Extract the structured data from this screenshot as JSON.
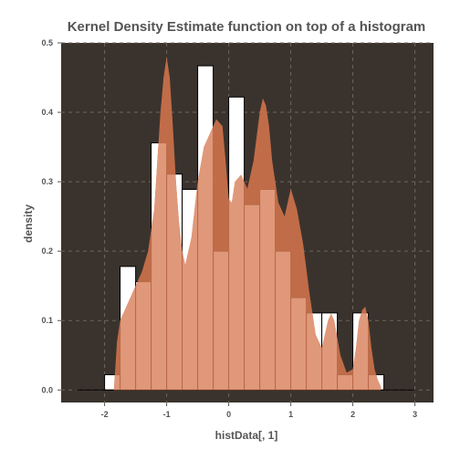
{
  "chart_data": {
    "type": "histogram_with_kde",
    "title": "Kernel Density Estimate function on top of a histogram",
    "xlabel": "histData[, 1]",
    "ylabel": "density",
    "xlim": [
      -2.7,
      3.3
    ],
    "ylim": [
      -0.018,
      0.5
    ],
    "x_ticks": [
      "-2",
      "-1",
      "0",
      "1",
      "2",
      "3"
    ],
    "x_tick_values": [
      -2,
      -1,
      0,
      1,
      2,
      3
    ],
    "y_ticks": [
      "0.0",
      "0.1",
      "0.2",
      "0.3",
      "0.4",
      "0.5"
    ],
    "y_tick_values": [
      0.0,
      0.1,
      0.2,
      0.3,
      0.4,
      0.5
    ],
    "grid": true,
    "histogram": {
      "bin_width": 0.25,
      "bins": [
        {
          "x0": -2.0,
          "x1": -1.75,
          "density": 0.022
        },
        {
          "x0": -1.75,
          "x1": -1.5,
          "density": 0.178
        },
        {
          "x0": -1.5,
          "x1": -1.25,
          "density": 0.156
        },
        {
          "x0": -1.25,
          "x1": -1.0,
          "density": 0.356
        },
        {
          "x0": -1.0,
          "x1": -0.75,
          "density": 0.311
        },
        {
          "x0": -0.75,
          "x1": -0.5,
          "density": 0.289
        },
        {
          "x0": -0.5,
          "x1": -0.25,
          "density": 0.467
        },
        {
          "x0": -0.25,
          "x1": 0.0,
          "density": 0.2
        },
        {
          "x0": 0.0,
          "x1": 0.25,
          "density": 0.422
        },
        {
          "x0": 0.25,
          "x1": 0.5,
          "density": 0.267
        },
        {
          "x0": 0.5,
          "x1": 0.75,
          "density": 0.289
        },
        {
          "x0": 0.75,
          "x1": 1.0,
          "density": 0.2
        },
        {
          "x0": 1.0,
          "x1": 1.25,
          "density": 0.133
        },
        {
          "x0": 1.25,
          "x1": 1.5,
          "density": 0.111
        },
        {
          "x0": 1.5,
          "x1": 1.75,
          "density": 0.111
        },
        {
          "x0": 1.75,
          "x1": 2.0,
          "density": 0.022
        },
        {
          "x0": 2.0,
          "x1": 2.25,
          "density": 0.111
        },
        {
          "x0": 2.25,
          "x1": 2.5,
          "density": 0.022
        }
      ]
    },
    "kde": {
      "x": [
        -1.85,
        -1.8,
        -1.75,
        -1.7,
        -1.6,
        -1.5,
        -1.4,
        -1.3,
        -1.2,
        -1.15,
        -1.1,
        -1.05,
        -1.0,
        -0.95,
        -0.9,
        -0.85,
        -0.8,
        -0.75,
        -0.7,
        -0.6,
        -0.5,
        -0.4,
        -0.3,
        -0.2,
        -0.1,
        -0.05,
        0.0,
        0.05,
        0.1,
        0.2,
        0.3,
        0.4,
        0.5,
        0.55,
        0.6,
        0.65,
        0.7,
        0.8,
        0.9,
        1.0,
        1.1,
        1.2,
        1.3,
        1.4,
        1.5,
        1.6,
        1.65,
        1.7,
        1.8,
        1.9,
        2.0,
        2.05,
        2.1,
        2.15,
        2.2,
        2.25,
        2.3,
        2.35,
        2.4,
        2.45
      ],
      "y": [
        0.0,
        0.07,
        0.1,
        0.11,
        0.13,
        0.15,
        0.17,
        0.2,
        0.26,
        0.33,
        0.4,
        0.45,
        0.48,
        0.45,
        0.38,
        0.3,
        0.24,
        0.2,
        0.18,
        0.22,
        0.3,
        0.35,
        0.37,
        0.39,
        0.38,
        0.33,
        0.275,
        0.27,
        0.3,
        0.31,
        0.29,
        0.33,
        0.4,
        0.42,
        0.41,
        0.38,
        0.33,
        0.27,
        0.25,
        0.29,
        0.26,
        0.21,
        0.14,
        0.08,
        0.06,
        0.1,
        0.11,
        0.1,
        0.05,
        0.025,
        0.03,
        0.06,
        0.1,
        0.115,
        0.12,
        0.1,
        0.06,
        0.03,
        0.015,
        0.005
      ]
    },
    "colors": {
      "panel_background": "#3a332d",
      "grid": "#6d655d",
      "histogram_fill": "#ffffff",
      "histogram_stroke": "#000000",
      "kde_fill": "#c8704a",
      "kde_overlap_fill": "#e0987a",
      "text": "#555555"
    }
  }
}
